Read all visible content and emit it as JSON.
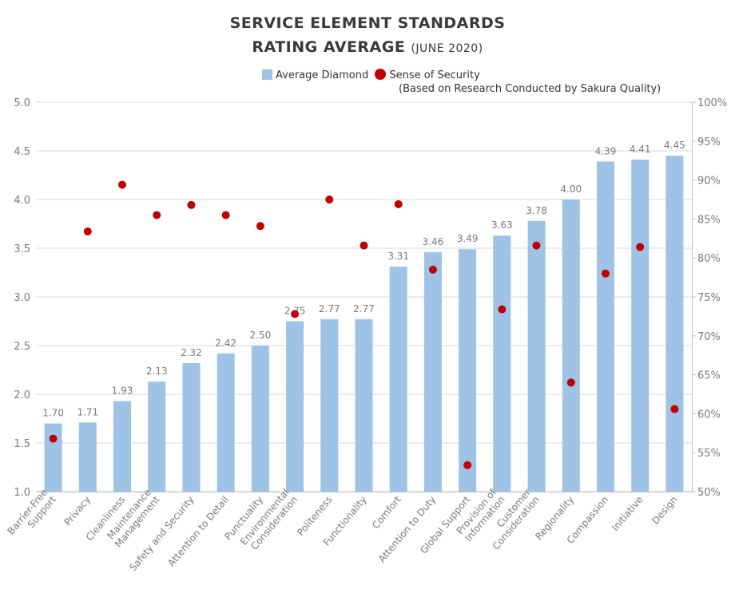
{
  "title": {
    "line1": "SERVICE ELEMENT STANDARDS",
    "line2_main": "RATING AVERAGE",
    "line2_sub": "(JUNE 2020)"
  },
  "legend": {
    "bar_label": "Average Diamond",
    "dot_label": "Sense of Security",
    "note": "(Based on Research Conducted by Sakura Quality)"
  },
  "colors": {
    "bar": "#9ec3e6",
    "dot": "#c00000",
    "grid": "#d9d9d9"
  },
  "chart_data": {
    "type": "bar",
    "title": "SERVICE ELEMENT STANDARDS RATING AVERAGE (JUNE 2020)",
    "categories": [
      [
        "Barrier-Free",
        "Support"
      ],
      [
        "Privacy"
      ],
      [
        "Cleanliness"
      ],
      [
        "Maintenance",
        "Management"
      ],
      [
        "Safety and Security"
      ],
      [
        "Attention to Detail"
      ],
      [
        "Punctuality"
      ],
      [
        "Environmental",
        "Consideration"
      ],
      [
        "Politeness"
      ],
      [
        "Functionality"
      ],
      [
        "Comfort"
      ],
      [
        "Attention to Duty"
      ],
      [
        "Global Support"
      ],
      [
        "Provision of",
        "Information"
      ],
      [
        "Customer",
        "Consideration"
      ],
      [
        "Regionality"
      ],
      [
        "Compassion"
      ],
      [
        "Initiative"
      ],
      [
        "Design"
      ]
    ],
    "series": [
      {
        "name": "Average Diamond",
        "type": "bar",
        "axis": "left",
        "values": [
          1.7,
          1.71,
          1.93,
          2.13,
          2.32,
          2.42,
          2.5,
          2.75,
          2.77,
          2.77,
          3.31,
          3.46,
          3.49,
          3.63,
          3.78,
          4.0,
          4.39,
          4.41,
          4.45
        ],
        "labels": [
          "1.70",
          "1.71",
          "1.93",
          "2.13",
          "2.32",
          "2.42",
          "2.50",
          "2.75",
          "2.77",
          "2.77",
          "3.31",
          "3.46",
          "3.49",
          "3.63",
          "3.78",
          "4.00",
          "4.39",
          "4.41",
          "4.45"
        ]
      },
      {
        "name": "Sense of Security",
        "type": "scatter",
        "axis": "right",
        "values": [
          56.8,
          83.4,
          89.4,
          85.5,
          86.8,
          85.5,
          84.1,
          72.8,
          87.5,
          81.6,
          86.9,
          78.5,
          53.4,
          73.4,
          81.6,
          64.0,
          78.0,
          81.4,
          60.6
        ]
      }
    ],
    "y_left": {
      "ylim": [
        1.0,
        5.0
      ],
      "ticks": [
        "1.0",
        "1.5",
        "2.0",
        "2.5",
        "3.0",
        "3.5",
        "4.0",
        "4.5",
        "5.0"
      ]
    },
    "y_right": {
      "ylim": [
        50,
        100
      ],
      "unit": "%",
      "ticks": [
        "50%",
        "55%",
        "60%",
        "65%",
        "70%",
        "75%",
        "80%",
        "85%",
        "90%",
        "95%",
        "100%"
      ]
    },
    "grid": true,
    "legend_position": "top"
  }
}
